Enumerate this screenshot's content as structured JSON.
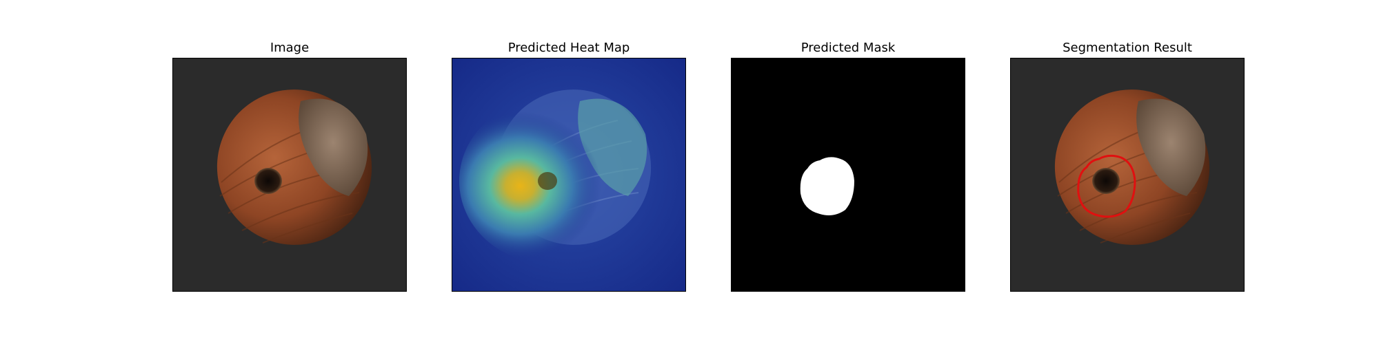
{
  "panels": [
    {
      "title": "Image"
    },
    {
      "title": "Predicted Heat Map"
    },
    {
      "title": "Predicted Mask"
    },
    {
      "title": "Segmentation Result"
    }
  ],
  "colors": {
    "background": "#2b2b2b",
    "nut_shell": "#9a4f2a",
    "nut_cap": "#8a7360",
    "heatmap_low": "#1c2f8f",
    "heatmap_high": "#f0c020",
    "mask_fg": "#ffffff",
    "mask_bg": "#000000",
    "contour": "#e01010"
  }
}
